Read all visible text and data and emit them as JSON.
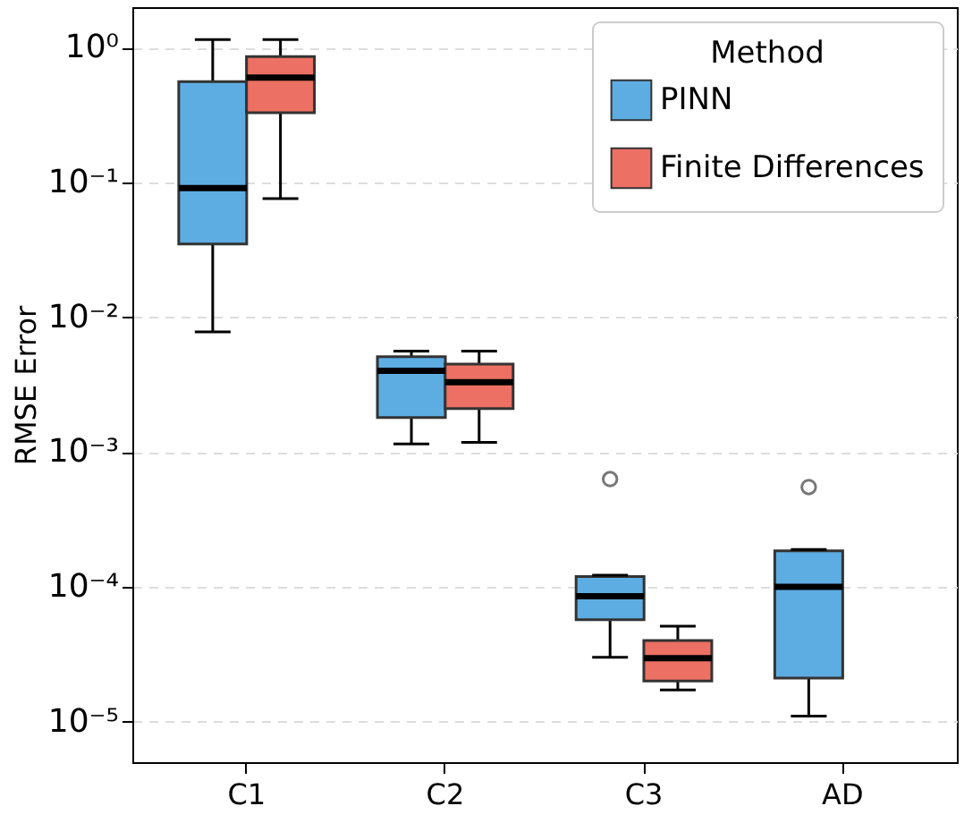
{
  "chart_data": {
    "type": "box",
    "ylabel": "RMSE Error",
    "legend_title": "Method",
    "legend": "top right",
    "log": "y",
    "grid": "y",
    "categories": [
      "C1",
      "C2",
      "C3",
      "AD"
    ],
    "ylim": [
      5e-06,
      2
    ],
    "yticks": [
      {
        "value": 1e-05,
        "label": "10⁻⁵"
      },
      {
        "value": 0.0001,
        "label": "10⁻⁴"
      },
      {
        "value": 0.001,
        "label": "10⁻³"
      },
      {
        "value": 0.01,
        "label": "10⁻²"
      },
      {
        "value": 0.1,
        "label": "10⁻¹"
      },
      {
        "value": 1,
        "label": "10⁰"
      }
    ],
    "series": [
      {
        "name": "PINN",
        "color": "#5dade2",
        "boxes": [
          {
            "low": 0.0078,
            "q1": 0.035,
            "median": 0.091,
            "q3": 0.56,
            "high": 1.15
          },
          {
            "low": 0.00115,
            "q1": 0.0018,
            "median": 0.004,
            "q3": 0.0051,
            "high": 0.0056
          },
          {
            "low": 3e-05,
            "q1": 5.7e-05,
            "median": 8.5e-05,
            "q3": 0.000119,
            "high": 0.000122,
            "outliers": [
              0.00063
            ]
          },
          {
            "low": 1.1e-05,
            "q1": 2.1e-05,
            "median": 0.0001,
            "q3": 0.000185,
            "high": 0.000189,
            "outliers": [
              0.00055
            ]
          }
        ]
      },
      {
        "name": "Finite Differences",
        "color": "#ec7063",
        "boxes": [
          {
            "low": 0.076,
            "q1": 0.33,
            "median": 0.6,
            "q3": 0.86,
            "high": 1.15
          },
          {
            "low": 0.00118,
            "q1": 0.0021,
            "median": 0.0033,
            "q3": 0.0045,
            "high": 0.0056
          },
          {
            "low": 1.72e-05,
            "q1": 2e-05,
            "median": 2.95e-05,
            "q3": 4e-05,
            "high": 5.1e-05
          },
          null
        ]
      }
    ]
  }
}
